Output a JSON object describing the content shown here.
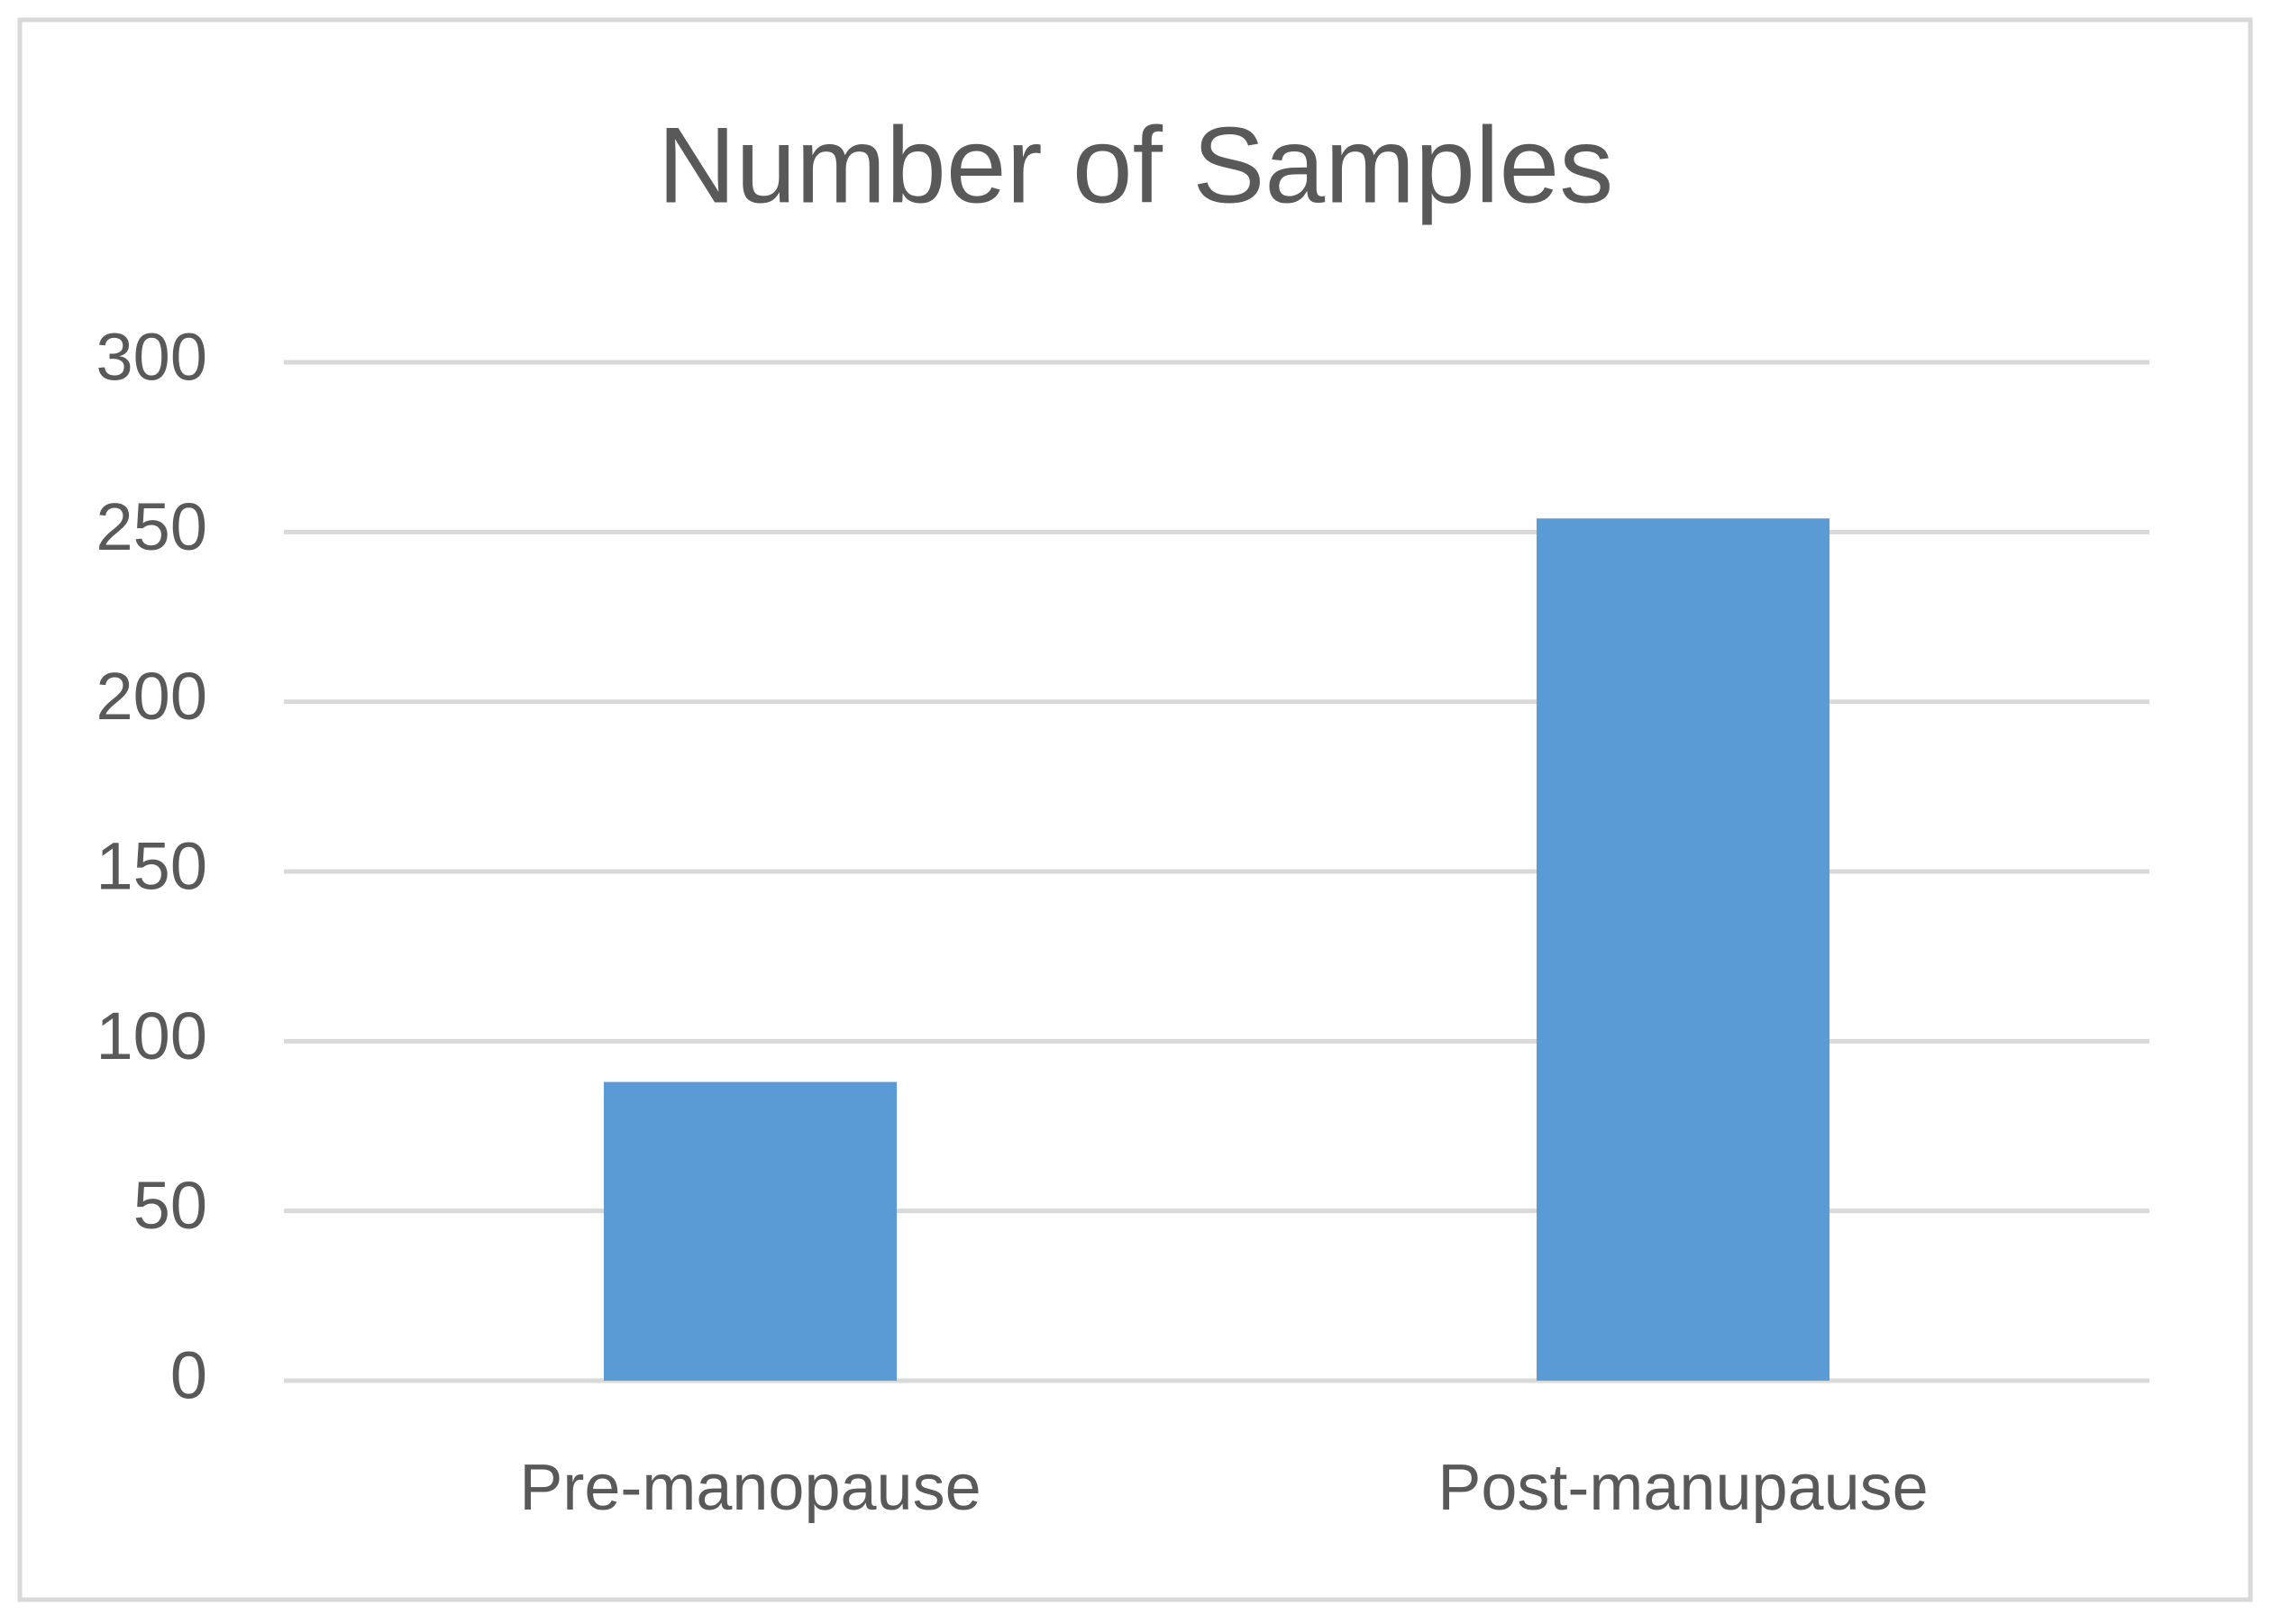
{
  "chart_data": {
    "type": "bar",
    "title": "Number of Samples",
    "categories": [
      "Pre-manopause",
      "Post-manupause"
    ],
    "values": [
      88,
      254
    ],
    "color": "#5b9bd5",
    "ylim": [
      0,
      300
    ],
    "yticks": [
      0,
      50,
      100,
      150,
      200,
      250,
      300
    ],
    "grid": true
  }
}
